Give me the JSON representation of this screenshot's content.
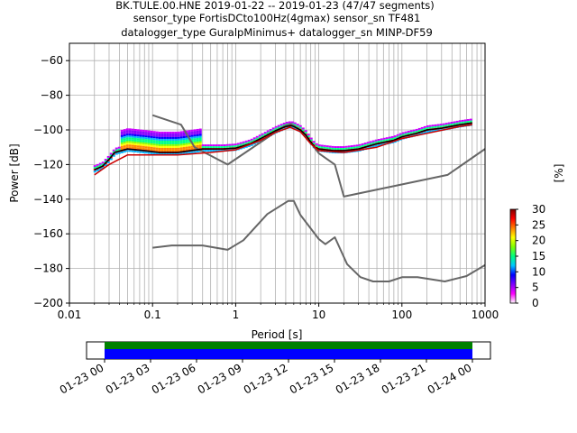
{
  "chart_data": {
    "type": "line",
    "title_lines": [
      "BK.TULE.00.HNE   2019-01-22 -- 2019-01-23  (47/47 segments)",
      "sensor_type FortisDCto100Hz(4gmax) sensor_sn TF481",
      "datalogger_type GuralpMinimus+ datalogger_sn MINP-DF59"
    ],
    "xlabel": "Period [s]",
    "ylabel": "Power [dB]",
    "x_scale": "log",
    "xlim": [
      0.01,
      1000
    ],
    "ylim": [
      -200,
      -50
    ],
    "x_ticks": [
      {
        "value": 0.01,
        "label": "0.01"
      },
      {
        "value": 0.1,
        "label": "0.1"
      },
      {
        "value": 1,
        "label": "1"
      },
      {
        "value": 10,
        "label": "10"
      },
      {
        "value": 100,
        "label": "100"
      },
      {
        "value": 1000,
        "label": "1000"
      }
    ],
    "y_ticks": [
      {
        "value": -60,
        "label": "−60"
      },
      {
        "value": -80,
        "label": "−80"
      },
      {
        "value": -100,
        "label": "−100"
      },
      {
        "value": -120,
        "label": "−120"
      },
      {
        "value": -140,
        "label": "−140"
      },
      {
        "value": -160,
        "label": "−160"
      },
      {
        "value": -180,
        "label": "−180"
      },
      {
        "value": -200,
        "label": "−200"
      }
    ],
    "grid": true,
    "series": [
      {
        "role": "high-noise-model",
        "color": "#666666",
        "points": [
          [
            0.1,
            -91.5
          ],
          [
            0.22,
            -97
          ],
          [
            0.32,
            -110
          ],
          [
            0.8,
            -120
          ],
          [
            3.8,
            -98
          ],
          [
            4.6,
            -96.5
          ],
          [
            6.3,
            -101
          ],
          [
            10,
            -113.5
          ],
          [
            15.6,
            -120
          ],
          [
            20,
            -138.5
          ],
          [
            354,
            -126
          ],
          [
            1000,
            -111
          ]
        ]
      },
      {
        "role": "low-noise-model",
        "color": "#666666",
        "points": [
          [
            0.1,
            -168
          ],
          [
            0.17,
            -166.7
          ],
          [
            0.4,
            -166.7
          ],
          [
            0.8,
            -169.2
          ],
          [
            1.24,
            -163.7
          ],
          [
            2.4,
            -148.6
          ],
          [
            4.3,
            -141
          ],
          [
            5,
            -141
          ],
          [
            6,
            -149
          ],
          [
            10,
            -163
          ],
          [
            12,
            -166
          ],
          [
            15.6,
            -162
          ],
          [
            21.9,
            -177.5
          ],
          [
            31.6,
            -185
          ],
          [
            45,
            -187.5
          ],
          [
            70,
            -187.5
          ],
          [
            101,
            -185
          ],
          [
            154,
            -185
          ],
          [
            328,
            -187.5
          ],
          [
            600,
            -184.4
          ],
          [
            1000,
            -178
          ]
        ]
      },
      {
        "role": "mode",
        "color": "#000000",
        "points": [
          [
            0.02,
            -123
          ],
          [
            0.025,
            -121
          ],
          [
            0.03,
            -117
          ],
          [
            0.035,
            -113
          ],
          [
            0.05,
            -111
          ],
          [
            0.08,
            -112
          ],
          [
            0.12,
            -113
          ],
          [
            0.2,
            -113
          ],
          [
            0.4,
            -111
          ],
          [
            0.7,
            -111
          ],
          [
            1,
            -110.5
          ],
          [
            1.5,
            -108
          ],
          [
            2,
            -105
          ],
          [
            3,
            -100.5
          ],
          [
            4,
            -98
          ],
          [
            4.6,
            -97.5
          ],
          [
            5,
            -98
          ],
          [
            6,
            -100
          ],
          [
            7,
            -103
          ],
          [
            8,
            -107
          ],
          [
            9,
            -110
          ],
          [
            10,
            -111
          ],
          [
            15,
            -112
          ],
          [
            20,
            -112
          ],
          [
            30,
            -111
          ],
          [
            50,
            -108
          ],
          [
            80,
            -106
          ],
          [
            100,
            -104
          ],
          [
            150,
            -102
          ],
          [
            200,
            -100
          ],
          [
            300,
            -99
          ],
          [
            500,
            -97
          ],
          [
            700,
            -96
          ]
        ]
      },
      {
        "role": "minimum",
        "color": "#cc0000",
        "points": [
          [
            0.02,
            -126
          ],
          [
            0.03,
            -120
          ],
          [
            0.05,
            -114.5
          ],
          [
            0.1,
            -114.5
          ],
          [
            0.2,
            -114.5
          ],
          [
            0.5,
            -113
          ],
          [
            1,
            -111.5
          ],
          [
            2,
            -106
          ],
          [
            3,
            -101.5
          ],
          [
            4.5,
            -98.5
          ],
          [
            6,
            -101
          ],
          [
            8,
            -108
          ],
          [
            10,
            -112
          ],
          [
            20,
            -113
          ],
          [
            50,
            -110
          ],
          [
            100,
            -105
          ],
          [
            200,
            -102
          ],
          [
            500,
            -98
          ],
          [
            700,
            -97
          ]
        ]
      }
    ],
    "colorbar": {
      "label": "[%]",
      "min": 0,
      "max": 30,
      "ticks": [
        {
          "value": 0,
          "label": "0"
        },
        {
          "value": 5,
          "label": "5"
        },
        {
          "value": 10,
          "label": "10"
        },
        {
          "value": 15,
          "label": "15"
        },
        {
          "value": 20,
          "label": "20"
        },
        {
          "value": 25,
          "label": "25"
        },
        {
          "value": 30,
          "label": "30"
        }
      ],
      "colors": [
        "#ffffff",
        "#ff00ff",
        "#8000ff",
        "#0000ff",
        "#00c8ff",
        "#00ff80",
        "#80ff00",
        "#ffff00",
        "#ff8000",
        "#ff0000",
        "#800000"
      ]
    },
    "timeline": {
      "tick_labels": [
        "01-23 00",
        "01-23 03",
        "01-23 06",
        "01-23 09",
        "01-23 12",
        "01-23 15",
        "01-23 18",
        "01-23 21",
        "01-24 00"
      ],
      "colors": {
        "data": "#0000ff",
        "coverage": "#008000"
      }
    }
  }
}
